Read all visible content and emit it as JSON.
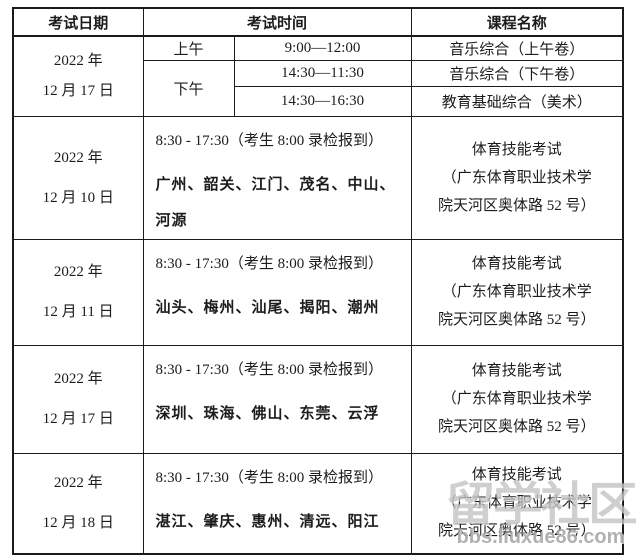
{
  "page": {
    "background": "#ffffff",
    "text_color": "#1c1c1c",
    "border_color": "#1a1a1a"
  },
  "table": {
    "headers": {
      "date": "考试日期",
      "time": "考试时间",
      "course": "课程名称"
    },
    "music_block": {
      "date": "2022 年\n12 月 17 日",
      "row1": {
        "session": "上午",
        "time": "9:00—12:00",
        "course": "音乐综合（上午卷）"
      },
      "row2": {
        "session": "下午",
        "time": "14:30—11:30",
        "course": "音乐综合（下午卷）"
      },
      "row3": {
        "time": "14:30—16:30",
        "course": "教育基础综合（美术）"
      }
    },
    "sports_blocks": [
      {
        "date": "2022 年\n12 月 10 日",
        "time_note": "8:30 - 17:30（考生 8:00 录检报到）",
        "cities": "广州、韶关、江门、茂名、中山、\n河源",
        "course": "体育技能考试\n（广东体育职业技术学\n院天河区奥体路 52 号）"
      },
      {
        "date": "2022 年\n12 月 11 日",
        "time_note": "8:30 - 17:30（考生 8:00 录检报到）",
        "cities": "汕头、梅州、汕尾、揭阳、潮州",
        "course": "体育技能考试\n（广东体育职业技术学\n院天河区奥体路 52 号）"
      },
      {
        "date": "2022 年\n12 月 17 日",
        "time_note": "8:30 - 17:30（考生 8:00 录检报到）",
        "cities": "深圳、珠海、佛山、东莞、云浮",
        "course": "体育技能考试\n（广东体育职业技术学\n院天河区奥体路 52 号）"
      },
      {
        "date": "2022 年\n12 月 18 日",
        "time_note": "8:30 - 17:30（考生 8:00 录检报到）",
        "cities": "湛江、肇庆、惠州、清远、阳江",
        "course": "体育技能考试\n（广东体育职业技术学\n院天河区奥体路 52 号）"
      }
    ]
  },
  "watermark": {
    "logo_text": "留学社区",
    "url": "bbs.liuxue86.com"
  }
}
